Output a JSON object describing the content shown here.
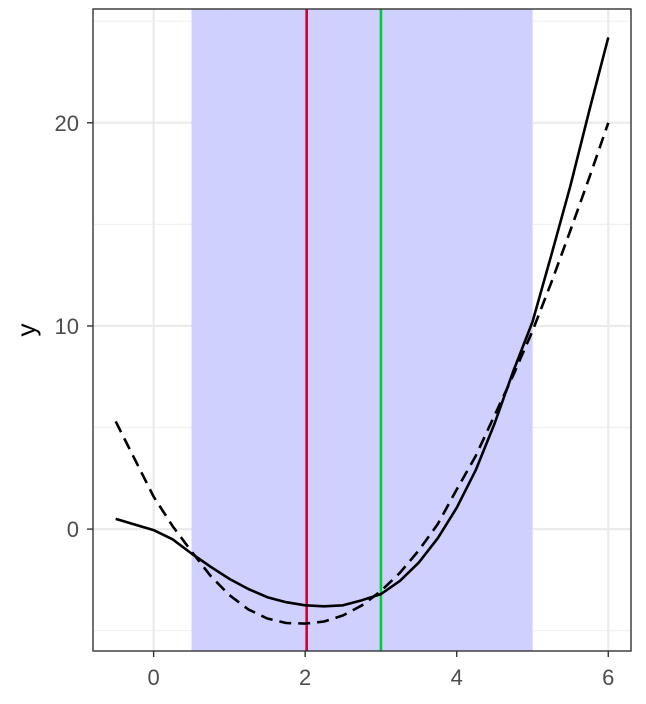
{
  "chart_data": {
    "type": "line",
    "title": "",
    "xlabel": "",
    "ylabel": "y",
    "xlim": [
      -0.8,
      6.3
    ],
    "ylim": [
      -6.0,
      25.6
    ],
    "x_ticks": [
      0,
      2,
      4,
      6
    ],
    "y_ticks": [
      0,
      10,
      20
    ],
    "x_minor_ticks": [
      -1,
      1,
      3,
      5
    ],
    "y_minor_ticks": [
      -5,
      5,
      15,
      25
    ],
    "grid": true,
    "panel_border": true,
    "shaded_region": {
      "x_start": 0.5,
      "x_end": 5.0,
      "color": "#ccccff"
    },
    "vertical_lines": [
      {
        "x": 2.02,
        "color": "#cc0033"
      },
      {
        "x": 3.0,
        "color": "#00cc33"
      }
    ],
    "series": [
      {
        "style": "solid",
        "color": "#000000",
        "x": [
          -0.5,
          0.0,
          0.25,
          0.5,
          0.75,
          1.0,
          1.25,
          1.5,
          1.75,
          2.0,
          2.25,
          2.5,
          2.75,
          3.0,
          3.25,
          3.5,
          3.75,
          4.0,
          4.25,
          4.5,
          4.75,
          5.0,
          5.25,
          5.5,
          5.75,
          6.0
        ],
        "values": [
          0.5,
          -0.05,
          -0.5,
          -1.2,
          -1.85,
          -2.45,
          -2.95,
          -3.35,
          -3.6,
          -3.75,
          -3.8,
          -3.75,
          -3.5,
          -3.2,
          -2.55,
          -1.65,
          -0.45,
          1.05,
          2.9,
          5.2,
          7.8,
          10.2,
          13.5,
          16.9,
          20.6,
          24.2
        ]
      },
      {
        "style": "dashed",
        "color": "#000000",
        "x": [
          -0.5,
          0.0,
          0.25,
          0.5,
          0.75,
          1.0,
          1.25,
          1.5,
          1.75,
          2.0,
          2.25,
          2.5,
          2.75,
          3.0,
          3.25,
          3.5,
          3.75,
          4.0,
          4.25,
          4.5,
          4.75,
          5.0,
          5.25,
          5.5,
          5.75,
          6.0
        ],
        "values": [
          5.3,
          1.6,
          0.15,
          -1.1,
          -2.3,
          -3.25,
          -3.95,
          -4.4,
          -4.62,
          -4.65,
          -4.55,
          -4.25,
          -3.75,
          -3.05,
          -2.15,
          -1.05,
          0.25,
          1.95,
          3.6,
          5.6,
          7.6,
          9.75,
          12.15,
          14.7,
          17.3,
          20.0
        ]
      }
    ]
  }
}
